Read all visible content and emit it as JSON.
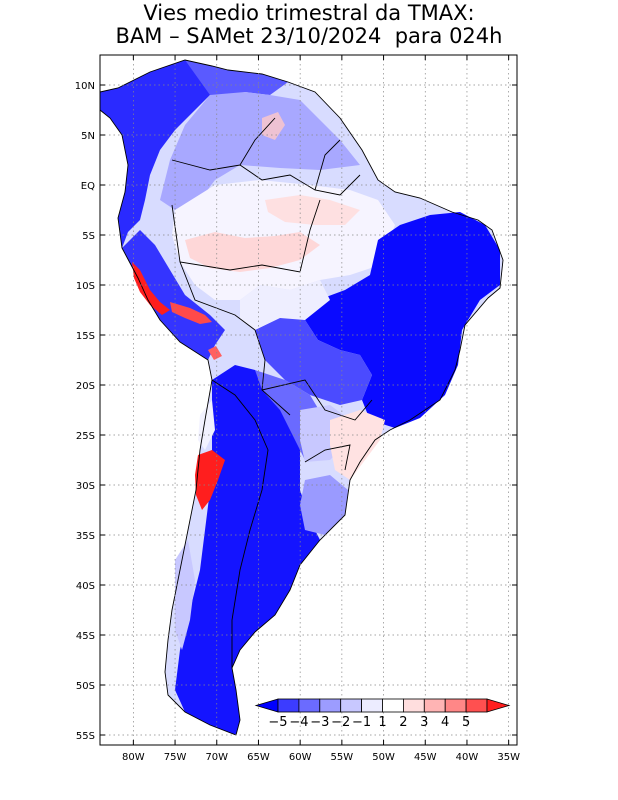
{
  "title": {
    "line1": "Vies medio trimestral da TMAX:",
    "line2": "BAM – SAMet 23/10/2024  para 024h"
  },
  "map": {
    "lon_range": [
      -84,
      -34
    ],
    "lat_range": [
      -56,
      13
    ],
    "lon_ticks": [
      {
        "value": -80,
        "label": "80W"
      },
      {
        "value": -75,
        "label": "75W"
      },
      {
        "value": -70,
        "label": "70W"
      },
      {
        "value": -65,
        "label": "65W"
      },
      {
        "value": -60,
        "label": "60W"
      },
      {
        "value": -55,
        "label": "55W"
      },
      {
        "value": -50,
        "label": "50W"
      },
      {
        "value": -45,
        "label": "45W"
      },
      {
        "value": -40,
        "label": "40W"
      },
      {
        "value": -35,
        "label": "35W"
      }
    ],
    "lat_ticks": [
      {
        "value": 10,
        "label": "10N"
      },
      {
        "value": 5,
        "label": "5N"
      },
      {
        "value": 0,
        "label": "EQ"
      },
      {
        "value": -5,
        "label": "5S"
      },
      {
        "value": -10,
        "label": "10S"
      },
      {
        "value": -15,
        "label": "15S"
      },
      {
        "value": -20,
        "label": "20S"
      },
      {
        "value": -25,
        "label": "25S"
      },
      {
        "value": -30,
        "label": "30S"
      },
      {
        "value": -35,
        "label": "35S"
      },
      {
        "value": -40,
        "label": "40S"
      },
      {
        "value": -45,
        "label": "45S"
      },
      {
        "value": -50,
        "label": "50S"
      },
      {
        "value": -55,
        "label": "55S"
      }
    ],
    "grid": true
  },
  "colorbar": {
    "labels": [
      "−5",
      "−4",
      "−3",
      "−2",
      "−1",
      "1",
      "2",
      "3",
      "4",
      "5"
    ],
    "colors": [
      "#0000ff",
      "#3c3cff",
      "#6b6bff",
      "#9c9cff",
      "#c8c8ff",
      "#ececff",
      "#ffffff",
      "#ffdede",
      "#ffb4b4",
      "#ff8787",
      "#ff5050",
      "#ff1e1e"
    ]
  }
}
